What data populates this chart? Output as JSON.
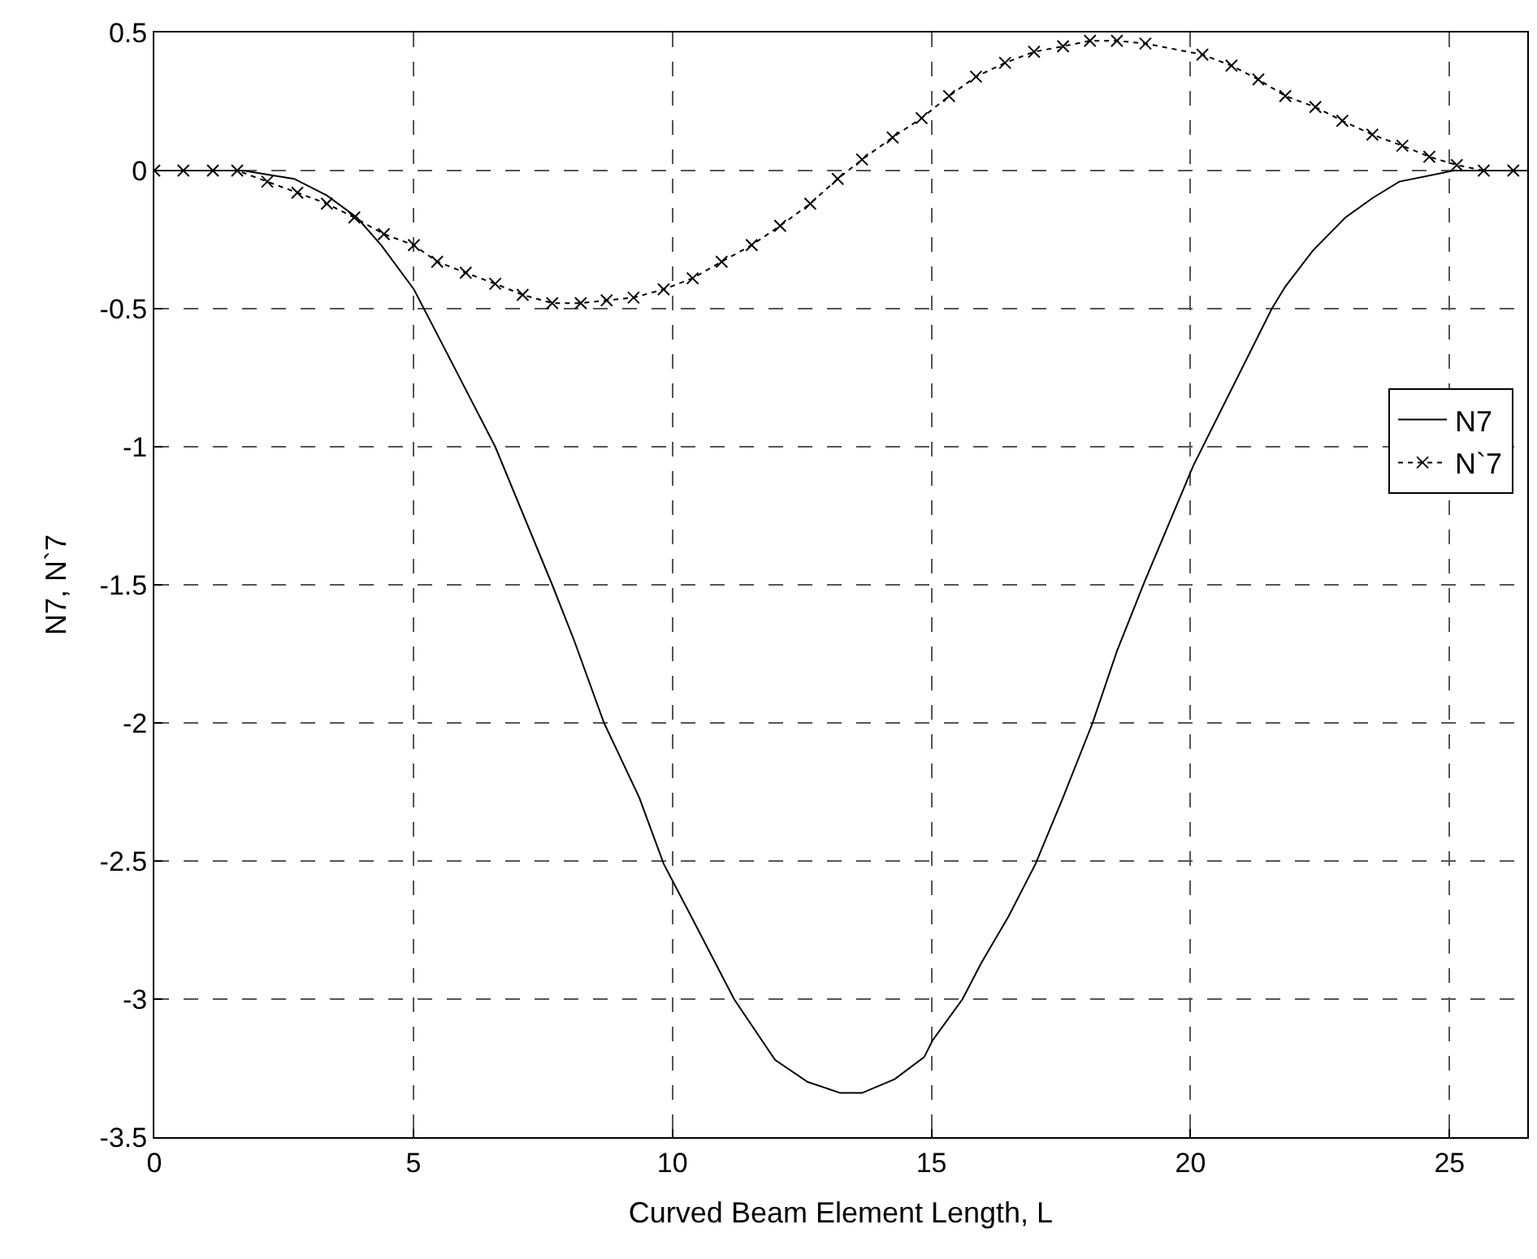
{
  "chart_data": {
    "type": "line",
    "xlabel": "Curved Beam Element Length, L",
    "ylabel": "N7, N`7",
    "xlim": [
      0,
      26.5
    ],
    "xticks": [
      0,
      5,
      10,
      15,
      20,
      25
    ],
    "ylim": [
      -3.5,
      0.5
    ],
    "yticks": [
      0.5,
      0,
      -0.5,
      -1,
      -1.5,
      -2,
      -2.5,
      -3,
      -3.5
    ],
    "grid": true,
    "legend": "right",
    "series": [
      {
        "name": "N7",
        "color": "#000000",
        "line_style": "solid",
        "marker": "none",
        "x": [
          0,
          1.71,
          2.7,
          3.33,
          3.91,
          4.38,
          5.01,
          5.59,
          6.58,
          7.68,
          8.1,
          8.68,
          9.36,
          9.83,
          10.36,
          11.19,
          11.98,
          12.61,
          13.24,
          13.66,
          14.29,
          14.86,
          15.02,
          15.6,
          15.96,
          16.49,
          17.01,
          17.54,
          18.11,
          18.58,
          19.11,
          20.05,
          21.57,
          21.83,
          22.36,
          22.99,
          23.51,
          24.03,
          25.08,
          26.5
        ],
        "values": [
          0,
          0,
          -0.03,
          -0.09,
          -0.17,
          -0.27,
          -0.43,
          -0.64,
          -1.0,
          -1.5,
          -1.7,
          -2.0,
          -2.27,
          -2.51,
          -2.7,
          -3.0,
          -3.22,
          -3.3,
          -3.34,
          -3.34,
          -3.29,
          -3.21,
          -3.15,
          -3.0,
          -2.87,
          -2.7,
          -2.51,
          -2.27,
          -2.0,
          -1.74,
          -1.49,
          -1.07,
          -0.5,
          -0.42,
          -0.29,
          -0.17,
          -0.1,
          -0.04,
          0,
          0
        ]
      },
      {
        "name": "N`7",
        "color": "#000000",
        "line_style": "dotted",
        "marker": "cross",
        "x": [
          0,
          0.56,
          1.13,
          1.6,
          2.18,
          2.76,
          3.33,
          3.86,
          4.43,
          5.01,
          5.46,
          6.01,
          6.58,
          7.11,
          7.68,
          8.23,
          8.73,
          9.25,
          9.83,
          10.39,
          10.95,
          11.53,
          12.08,
          12.66,
          13.19,
          13.66,
          14.25,
          14.81,
          15.34,
          15.86,
          16.42,
          16.98,
          17.54,
          18.06,
          18.58,
          19.13,
          20.23,
          20.79,
          21.31,
          21.83,
          22.41,
          22.93,
          23.51,
          24.09,
          24.61,
          25.14,
          25.66,
          26.23
        ],
        "values": [
          0,
          0,
          0,
          0,
          -0.04,
          -0.08,
          -0.12,
          -0.17,
          -0.23,
          -0.27,
          -0.33,
          -0.37,
          -0.41,
          -0.45,
          -0.48,
          -0.48,
          -0.47,
          -0.46,
          -0.43,
          -0.39,
          -0.33,
          -0.27,
          -0.2,
          -0.12,
          -0.03,
          0.04,
          0.12,
          0.19,
          0.27,
          0.34,
          0.39,
          0.43,
          0.45,
          0.47,
          0.47,
          0.46,
          0.42,
          0.38,
          0.33,
          0.27,
          0.23,
          0.18,
          0.13,
          0.09,
          0.05,
          0.02,
          0,
          0
        ]
      }
    ]
  }
}
